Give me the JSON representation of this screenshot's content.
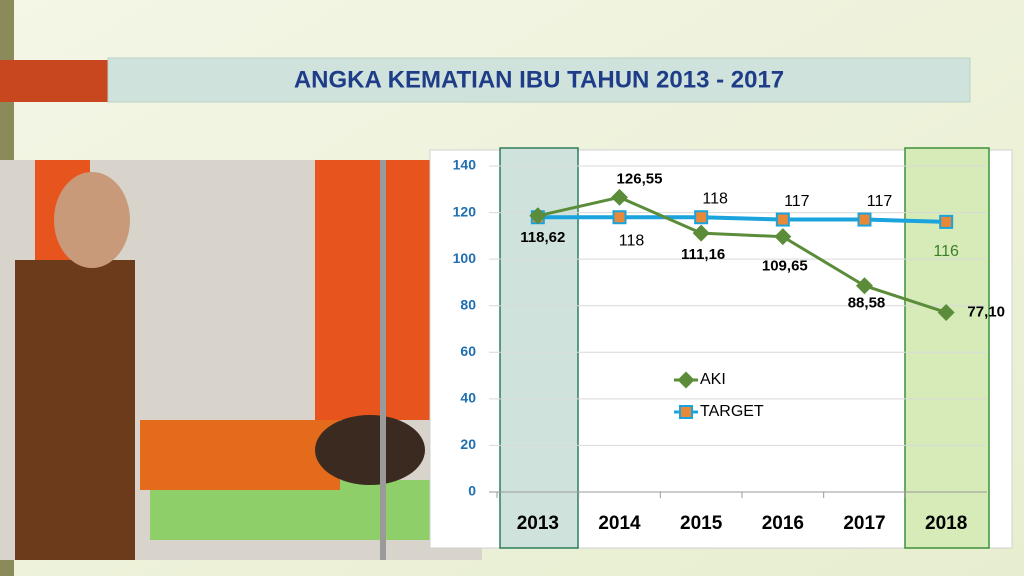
{
  "chart_data": {
    "type": "line",
    "title": "ANGKA KEMATIAN IBU TAHUN 2013 - 2017",
    "categories": [
      "2013",
      "2014",
      "2015",
      "2016",
      "2017",
      "2018"
    ],
    "series": [
      {
        "name": "AKI",
        "color": "#5b8c3a",
        "marker_color": "#5b8c3a",
        "values": [
          118.62,
          126.55,
          111.16,
          109.65,
          88.58,
          77.1
        ],
        "value_labels": [
          "118,62",
          "126,55",
          "111,16",
          "109,65",
          "88,58",
          "77,10"
        ]
      },
      {
        "name": "TARGET",
        "color": "#1aa3dc",
        "marker_color": "#e8893a",
        "values": [
          118,
          118,
          118,
          117,
          117,
          116
        ],
        "value_labels": [
          null,
          "118",
          "118",
          "117",
          "117",
          "116"
        ]
      }
    ],
    "ylim": [
      0,
      140
    ],
    "yticks": [
      0,
      20,
      40,
      60,
      80,
      100,
      120,
      140
    ],
    "grid": true
  }
}
